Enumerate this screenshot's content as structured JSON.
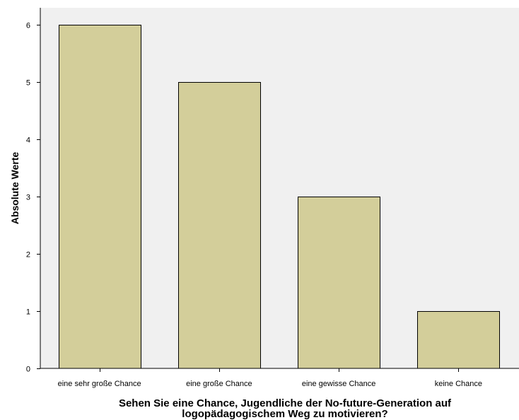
{
  "chart_data": {
    "type": "bar",
    "categories": [
      "eine sehr große Chance",
      "eine große Chance",
      "eine gewisse Chance",
      "keine Chance"
    ],
    "values": [
      6,
      5,
      3,
      1
    ],
    "xlabel_lines": [
      "Sehen Sie eine Chance, Jugendliche der No-future-Generation auf",
      "logopädagogischem Weg zu motivieren?"
    ],
    "ylabel": "Absolute Werte",
    "ylim": [
      0,
      6.3
    ],
    "yticks": [
      0,
      1,
      2,
      3,
      4,
      5,
      6
    ],
    "grid": false,
    "colors": {
      "bar_fill": "#d3ce9a",
      "bar_stroke": "#000000",
      "plot_background": "#f0f0f0",
      "axis": "#000000"
    }
  }
}
